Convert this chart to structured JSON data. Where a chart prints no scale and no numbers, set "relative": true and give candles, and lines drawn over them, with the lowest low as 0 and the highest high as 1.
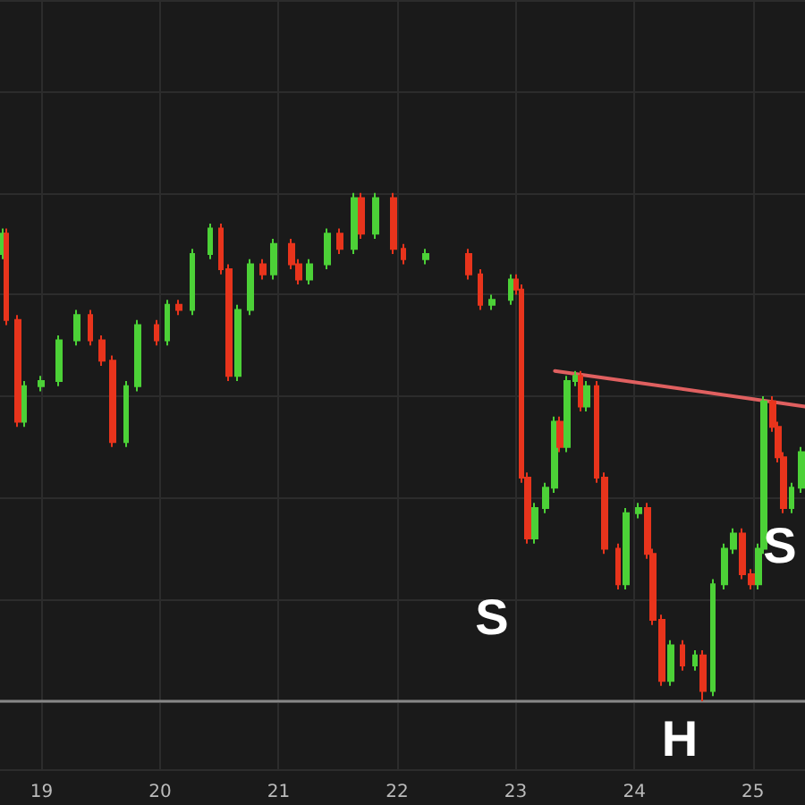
{
  "chart_data": {
    "type": "candlestick",
    "relative": true,
    "grid": true,
    "xlim": [
      18.65,
      25.44
    ],
    "xticks": [
      19,
      20,
      21,
      22,
      23,
      24,
      25
    ],
    "x": [
      18.67,
      18.7,
      18.8,
      18.85,
      19.0,
      19.15,
      19.3,
      19.41,
      19.51,
      19.6,
      19.71,
      19.81,
      19.97,
      20.06,
      20.16,
      20.27,
      20.42,
      20.51,
      20.58,
      20.66,
      20.76,
      20.87,
      20.96,
      21.11,
      21.17,
      21.26,
      21.41,
      21.52,
      21.64,
      21.7,
      21.82,
      21.97,
      22.05,
      22.24,
      22.6,
      22.7,
      22.8,
      22.96,
      23.0,
      23.05,
      23.1,
      23.16,
      23.25,
      23.33,
      23.37,
      23.43,
      23.51,
      23.55,
      23.6,
      23.68,
      23.75,
      23.86,
      23.93,
      24.04,
      24.11,
      24.16,
      24.23,
      24.31,
      24.41,
      24.51,
      24.58,
      24.66,
      24.76,
      24.84,
      24.91,
      24.99,
      25.05,
      25.09,
      25.17,
      25.21,
      25.26,
      25.33,
      25.41
    ],
    "series": [
      {
        "ohlc": [
          [
            0.88,
            0.93,
            0.87,
            0.92
          ],
          [
            0.92,
            0.93,
            0.74,
            0.75
          ],
          [
            0.75,
            0.76,
            0.54,
            0.55
          ],
          [
            0.55,
            0.63,
            0.54,
            0.62
          ],
          [
            0.62,
            0.64,
            0.61,
            0.63
          ],
          [
            0.63,
            0.72,
            0.62,
            0.71
          ],
          [
            0.71,
            0.77,
            0.7,
            0.76
          ],
          [
            0.76,
            0.77,
            0.7,
            0.71
          ],
          [
            0.71,
            0.72,
            0.66,
            0.67
          ],
          [
            0.67,
            0.68,
            0.5,
            0.51
          ],
          [
            0.51,
            0.63,
            0.5,
            0.62
          ],
          [
            0.62,
            0.75,
            0.61,
            0.74
          ],
          [
            0.74,
            0.75,
            0.7,
            0.71
          ],
          [
            0.71,
            0.79,
            0.7,
            0.78
          ],
          [
            0.78,
            0.79,
            0.76,
            0.77
          ],
          [
            0.77,
            0.89,
            0.76,
            0.88
          ],
          [
            0.88,
            0.94,
            0.87,
            0.93
          ],
          [
            0.93,
            0.94,
            0.84,
            0.85
          ],
          [
            0.85,
            0.86,
            0.63,
            0.64
          ],
          [
            0.64,
            0.78,
            0.63,
            0.77
          ],
          [
            0.77,
            0.87,
            0.76,
            0.86
          ],
          [
            0.86,
            0.87,
            0.83,
            0.84
          ],
          [
            0.84,
            0.91,
            0.83,
            0.9
          ],
          [
            0.9,
            0.91,
            0.85,
            0.86
          ],
          [
            0.86,
            0.87,
            0.82,
            0.83
          ],
          [
            0.83,
            0.87,
            0.82,
            0.86
          ],
          [
            0.86,
            0.93,
            0.85,
            0.92
          ],
          [
            0.92,
            0.93,
            0.88,
            0.89
          ],
          [
            0.89,
            1.0,
            0.88,
            0.99
          ],
          [
            0.99,
            1.0,
            0.91,
            0.92
          ],
          [
            0.92,
            1.0,
            0.91,
            0.99
          ],
          [
            0.99,
            1.0,
            0.88,
            0.89
          ],
          [
            0.89,
            0.9,
            0.86,
            0.87
          ],
          [
            0.87,
            0.89,
            0.86,
            0.88
          ],
          [
            0.88,
            0.89,
            0.83,
            0.84
          ],
          [
            0.84,
            0.85,
            0.77,
            0.78
          ],
          [
            0.78,
            0.8,
            0.77,
            0.79
          ],
          [
            0.79,
            0.84,
            0.78,
            0.83
          ],
          [
            0.83,
            0.84,
            0.8,
            0.81
          ],
          [
            0.81,
            0.82,
            0.43,
            0.44
          ],
          [
            0.44,
            0.45,
            0.31,
            0.32
          ],
          [
            0.32,
            0.39,
            0.31,
            0.38
          ],
          [
            0.38,
            0.43,
            0.37,
            0.42
          ],
          [
            0.42,
            0.56,
            0.41,
            0.55
          ],
          [
            0.55,
            0.56,
            0.49,
            0.5
          ],
          [
            0.5,
            0.64,
            0.49,
            0.63
          ],
          [
            0.63,
            0.65,
            0.62,
            0.64
          ],
          [
            0.64,
            0.65,
            0.57,
            0.58
          ],
          [
            0.58,
            0.63,
            0.57,
            0.62
          ],
          [
            0.62,
            0.63,
            0.43,
            0.44
          ],
          [
            0.44,
            0.45,
            0.29,
            0.3
          ],
          [
            0.3,
            0.31,
            0.22,
            0.23
          ],
          [
            0.23,
            0.38,
            0.22,
            0.37
          ],
          [
            0.37,
            0.39,
            0.36,
            0.38
          ],
          [
            0.38,
            0.39,
            0.28,
            0.29
          ],
          [
            0.29,
            0.3,
            0.15,
            0.16
          ],
          [
            0.16,
            0.17,
            0.03,
            0.04
          ],
          [
            0.04,
            0.12,
            0.03,
            0.11
          ],
          [
            0.11,
            0.12,
            0.06,
            0.07
          ],
          [
            0.07,
            0.1,
            0.06,
            0.09
          ],
          [
            0.09,
            0.1,
            0.0,
            0.02
          ],
          [
            0.02,
            0.24,
            0.01,
            0.23
          ],
          [
            0.23,
            0.31,
            0.22,
            0.3
          ],
          [
            0.3,
            0.34,
            0.29,
            0.33
          ],
          [
            0.33,
            0.34,
            0.24,
            0.25
          ],
          [
            0.25,
            0.26,
            0.22,
            0.23
          ],
          [
            0.23,
            0.31,
            0.22,
            0.3
          ],
          [
            0.3,
            0.6,
            0.29,
            0.59
          ],
          [
            0.59,
            0.6,
            0.53,
            0.54
          ],
          [
            0.54,
            0.55,
            0.47,
            0.48
          ],
          [
            0.48,
            0.49,
            0.37,
            0.38
          ],
          [
            0.38,
            0.43,
            0.37,
            0.42
          ],
          [
            0.42,
            0.5,
            0.41,
            0.49
          ]
        ],
        "colors": [
          "#4cd137",
          "#e8341c",
          "#e8341c",
          "#4cd137",
          "#4cd137",
          "#4cd137",
          "#4cd137",
          "#e8341c",
          "#e8341c",
          "#e8341c",
          "#4cd137",
          "#4cd137",
          "#e8341c",
          "#4cd137",
          "#e8341c",
          "#4cd137",
          "#4cd137",
          "#e8341c",
          "#e8341c",
          "#4cd137",
          "#4cd137",
          "#e8341c",
          "#4cd137",
          "#e8341c",
          "#e8341c",
          "#4cd137",
          "#4cd137",
          "#e8341c",
          "#4cd137",
          "#e8341c",
          "#4cd137",
          "#e8341c",
          "#e8341c",
          "#4cd137",
          "#e8341c",
          "#e8341c",
          "#4cd137",
          "#4cd137",
          "#e8341c",
          "#e8341c",
          "#e8341c",
          "#4cd137",
          "#4cd137",
          "#4cd137",
          "#e8341c",
          "#4cd137",
          "#4cd137",
          "#e8341c",
          "#4cd137",
          "#e8341c",
          "#e8341c",
          "#e8341c",
          "#4cd137",
          "#4cd137",
          "#e8341c",
          "#e8341c",
          "#e8341c",
          "#4cd137",
          "#e8341c",
          "#4cd137",
          "#e8341c",
          "#4cd137",
          "#4cd137",
          "#4cd137",
          "#e8341c",
          "#e8341c",
          "#4cd137",
          "#4cd137",
          "#e8341c",
          "#e8341c",
          "#e8341c",
          "#4cd137",
          "#4cd137"
        ]
      },
      {
        "type": "line",
        "color": "#e06060",
        "x": [
          23.33,
          25.44
        ],
        "values": [
          0.65,
          0.58
        ]
      }
    ],
    "annotations": [
      "S",
      "H",
      "S"
    ]
  }
}
